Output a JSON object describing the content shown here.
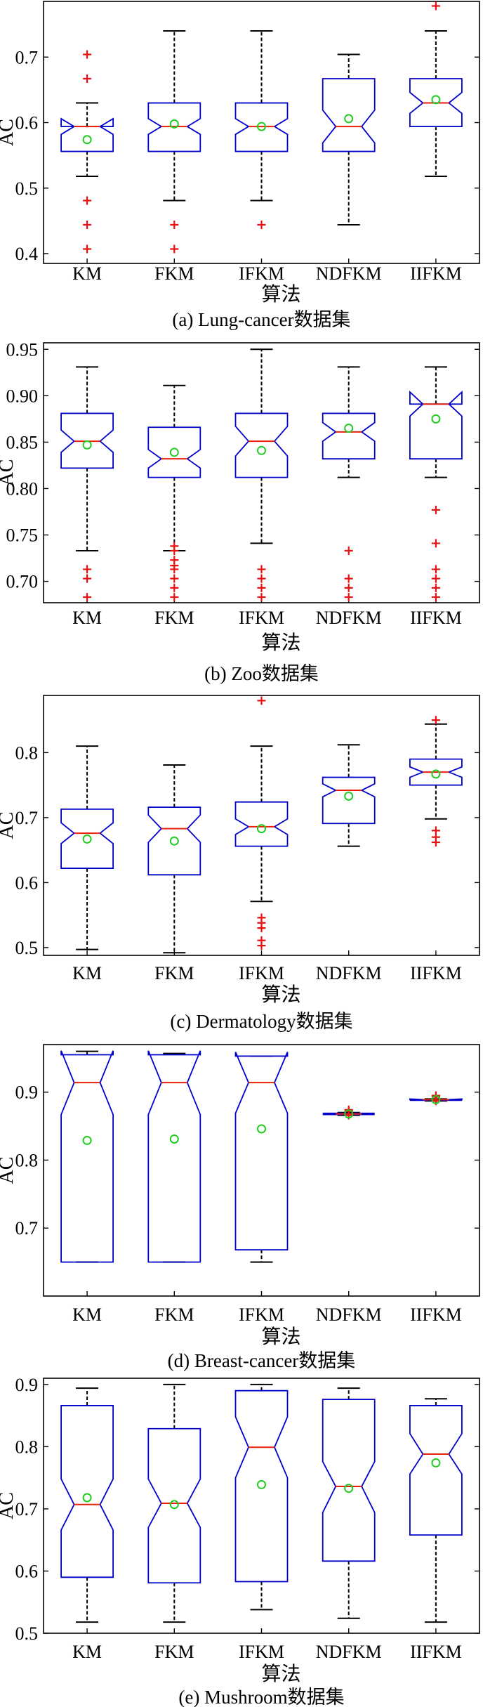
{
  "chart_data": [
    {
      "type": "boxplot",
      "caption": "(a) Lung-cancer数据集",
      "xlabel": "算法",
      "ylabel": "AC",
      "categories": [
        "KM",
        "FKM",
        "IFKM",
        "NDFKM",
        "IIFKM"
      ],
      "ylim": [
        0.385,
        0.785
      ],
      "yticks": [
        0.4,
        0.5,
        0.6,
        0.7
      ],
      "ytick_labels": [
        "0.4",
        "0.5",
        "0.6",
        "0.7"
      ],
      "boxes": [
        {
          "whislo": 0.518,
          "q1": 0.556,
          "med": 0.594,
          "q3": 0.594,
          "whishi": 0.63,
          "mean": 0.574,
          "notch": [
            0.582,
            0.606
          ],
          "outliers": [
            0.704,
            0.667,
            0.481,
            0.444,
            0.407
          ]
        },
        {
          "whislo": 0.481,
          "q1": 0.556,
          "med": 0.594,
          "q3": 0.63,
          "whishi": 0.74,
          "mean": 0.598,
          "notch": [
            0.582,
            0.606
          ],
          "outliers": [
            0.444,
            0.407
          ]
        },
        {
          "whislo": 0.481,
          "q1": 0.556,
          "med": 0.594,
          "q3": 0.63,
          "whishi": 0.74,
          "mean": 0.594,
          "notch": [
            0.582,
            0.606
          ],
          "outliers": [
            0.444
          ]
        },
        {
          "whislo": 0.444,
          "q1": 0.556,
          "med": 0.594,
          "q3": 0.667,
          "whishi": 0.704,
          "mean": 0.606,
          "notch": [
            0.569,
            0.619
          ],
          "outliers": []
        },
        {
          "whislo": 0.518,
          "q1": 0.594,
          "med": 0.63,
          "q3": 0.667,
          "whishi": 0.74,
          "mean": 0.635,
          "notch": [
            0.614,
            0.646
          ],
          "outliers": [
            0.778
          ]
        }
      ]
    },
    {
      "type": "boxplot",
      "caption": "(b) Zoo数据集",
      "xlabel": "算法",
      "ylabel": "AC",
      "categories": [
        "KM",
        "FKM",
        "IFKM",
        "NDFKM",
        "IIFKM"
      ],
      "ylim": [
        0.677,
        0.957
      ],
      "yticks": [
        0.7,
        0.75,
        0.8,
        0.85,
        0.9,
        0.95
      ],
      "ytick_labels": [
        "0.70",
        "0.75",
        "0.80",
        "0.85",
        "0.90",
        "0.95"
      ],
      "boxes": [
        {
          "whislo": 0.733,
          "q1": 0.822,
          "med": 0.851,
          "q3": 0.881,
          "whishi": 0.931,
          "mean": 0.847,
          "notch": [
            0.839,
            0.863
          ],
          "outliers": [
            0.713,
            0.703,
            0.683
          ]
        },
        {
          "whislo": 0.733,
          "q1": 0.812,
          "med": 0.832,
          "q3": 0.866,
          "whishi": 0.911,
          "mean": 0.839,
          "notch": [
            0.822,
            0.842
          ],
          "outliers": [
            0.738,
            0.733,
            0.723,
            0.717,
            0.713,
            0.703,
            0.693,
            0.683
          ]
        },
        {
          "whislo": 0.741,
          "q1": 0.812,
          "med": 0.851,
          "q3": 0.881,
          "whishi": 0.95,
          "mean": 0.841,
          "notch": [
            0.835,
            0.867
          ],
          "outliers": [
            0.713,
            0.703,
            0.693,
            0.683
          ]
        },
        {
          "whislo": 0.812,
          "q1": 0.832,
          "med": 0.861,
          "q3": 0.881,
          "whishi": 0.931,
          "mean": 0.865,
          "notch": [
            0.851,
            0.871
          ],
          "outliers": [
            0.733,
            0.703,
            0.693,
            0.683
          ]
        },
        {
          "whislo": 0.812,
          "q1": 0.832,
          "med": 0.891,
          "q3": 0.891,
          "whishi": 0.931,
          "mean": 0.875,
          "notch": [
            0.878,
            0.904
          ],
          "outliers": [
            0.777,
            0.741,
            0.713,
            0.703,
            0.693,
            0.683
          ]
        }
      ]
    },
    {
      "type": "boxplot",
      "caption": "(c) Dermatology数据集",
      "xlabel": "算法",
      "ylabel": "AC",
      "categories": [
        "KM",
        "FKM",
        "IFKM",
        "NDFKM",
        "IIFKM"
      ],
      "ylim": [
        0.488,
        0.888
      ],
      "yticks": [
        0.5,
        0.6,
        0.7,
        0.8
      ],
      "ytick_labels": [
        "0.5",
        "0.6",
        "0.7",
        "0.8"
      ],
      "boxes": [
        {
          "whislo": 0.497,
          "q1": 0.622,
          "med": 0.676,
          "q3": 0.713,
          "whishi": 0.81,
          "mean": 0.667,
          "notch": [
            0.66,
            0.692
          ],
          "outliers": []
        },
        {
          "whislo": 0.492,
          "q1": 0.612,
          "med": 0.683,
          "q3": 0.716,
          "whishi": 0.781,
          "mean": 0.664,
          "notch": [
            0.662,
            0.704
          ],
          "outliers": []
        },
        {
          "whislo": 0.571,
          "q1": 0.656,
          "med": 0.686,
          "q3": 0.724,
          "whishi": 0.81,
          "mean": 0.683,
          "notch": [
            0.674,
            0.698
          ],
          "outliers": [
            0.88,
            0.546,
            0.538,
            0.53,
            0.511,
            0.503
          ]
        },
        {
          "whislo": 0.656,
          "q1": 0.691,
          "med": 0.742,
          "q3": 0.762,
          "whishi": 0.812,
          "mean": 0.733,
          "notch": [
            0.732,
            0.752
          ],
          "outliers": []
        },
        {
          "whislo": 0.698,
          "q1": 0.75,
          "med": 0.77,
          "q3": 0.79,
          "whishi": 0.844,
          "mean": 0.767,
          "notch": [
            0.762,
            0.778
          ],
          "outliers": [
            0.85,
            0.68,
            0.67,
            0.662
          ]
        }
      ]
    },
    {
      "type": "boxplot",
      "caption": "(d) Breast-cancer数据集",
      "xlabel": "算法",
      "ylabel": "AC",
      "categories": [
        "KM",
        "NDFKM",
        "IIFKM",
        "FKM",
        "IFKM"
      ],
      "categories_order_note": "",
      "ylim": [
        0.6,
        0.97
      ],
      "yticks": [
        0.7,
        0.8,
        0.9
      ],
      "ytick_labels": [
        "0.7",
        "0.8",
        "0.9"
      ],
      "boxes": [
        {
          "label": "KM",
          "whislo": 0.65,
          "q1": 0.65,
          "med": 0.914,
          "q3": 0.955,
          "whishi": 0.96,
          "mean": 0.829,
          "notch": [
            0.867,
            0.961
          ],
          "outliers": []
        },
        {
          "label": "FKM",
          "whislo": 0.65,
          "q1": 0.65,
          "med": 0.914,
          "q3": 0.955,
          "whishi": 0.957,
          "mean": 0.831,
          "notch": [
            0.867,
            0.961
          ],
          "outliers": []
        },
        {
          "label": "IFKM",
          "whislo": 0.65,
          "q1": 0.668,
          "med": 0.914,
          "q3": 0.953,
          "whishi": 0.953,
          "mean": 0.846,
          "notch": [
            0.869,
            0.959
          ],
          "outliers": []
        },
        {
          "label": "NDFKM",
          "whislo": 0.866,
          "q1": 0.867,
          "med": 0.868,
          "q3": 0.869,
          "whishi": 0.87,
          "mean": 0.868,
          "notch": [
            0.867,
            0.869
          ],
          "outliers": [
            0.874,
            0.872,
            0.866
          ]
        },
        {
          "label": "IIFKM",
          "whislo": 0.887,
          "q1": 0.888,
          "med": 0.889,
          "q3": 0.889,
          "whishi": 0.89,
          "mean": 0.889,
          "notch": [
            0.888,
            0.89
          ],
          "outliers": [
            0.895,
            0.893,
            0.887
          ]
        }
      ]
    },
    {
      "type": "boxplot",
      "caption": "(e) Mushroom数据集",
      "xlabel": "算法",
      "ylabel": "AC",
      "categories": [
        "KM",
        "FKM",
        "IFKM",
        "NDFKM",
        "IIFKM"
      ],
      "ylim": [
        0.5,
        0.91
      ],
      "yticks": [
        0.5,
        0.6,
        0.7,
        0.8,
        0.9
      ],
      "ytick_labels": [
        "0.5",
        "0.6",
        "0.7",
        "0.8",
        "0.9"
      ],
      "boxes": [
        {
          "whislo": 0.518,
          "q1": 0.59,
          "med": 0.707,
          "q3": 0.866,
          "whishi": 0.894,
          "mean": 0.718,
          "notch": [
            0.666,
            0.748
          ],
          "outliers": []
        },
        {
          "whislo": 0.518,
          "q1": 0.581,
          "med": 0.709,
          "q3": 0.829,
          "whishi": 0.9,
          "mean": 0.707,
          "notch": [
            0.67,
            0.748
          ],
          "outliers": []
        },
        {
          "whislo": 0.538,
          "q1": 0.583,
          "med": 0.799,
          "q3": 0.89,
          "whishi": 0.9,
          "mean": 0.739,
          "notch": [
            0.75,
            0.848
          ],
          "outliers": []
        },
        {
          "whislo": 0.524,
          "q1": 0.616,
          "med": 0.736,
          "q3": 0.876,
          "whishi": 0.894,
          "mean": 0.733,
          "notch": [
            0.694,
            0.776
          ],
          "outliers": []
        },
        {
          "whislo": 0.518,
          "q1": 0.658,
          "med": 0.788,
          "q3": 0.866,
          "whishi": 0.877,
          "mean": 0.774,
          "notch": [
            0.756,
            0.821
          ],
          "outliers": []
        }
      ]
    }
  ],
  "colors": {
    "box": "#0000cc",
    "median": "#e8200c",
    "whisker": "#000000",
    "mean_marker": "#22cc22",
    "outlier": "#e81010"
  }
}
